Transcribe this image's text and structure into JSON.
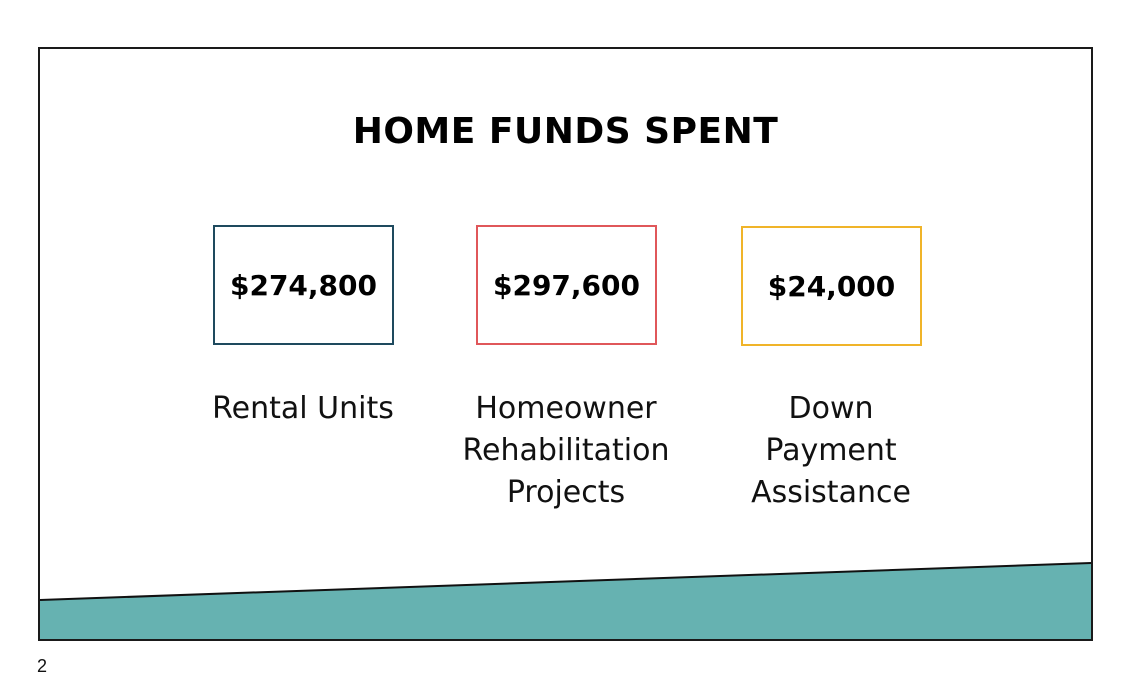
{
  "slide": {
    "title": "HOME FUNDS SPENT",
    "accent_color": "#66b2b1",
    "items": [
      {
        "amount": "$274,800",
        "label_lines": [
          "Rental Units"
        ],
        "border_color": "#1e4a5e"
      },
      {
        "amount": "$297,600",
        "label_lines": [
          "Homeowner",
          "Rehabilitation",
          "Projects"
        ],
        "border_color": "#e0575a"
      },
      {
        "amount": "$24,000",
        "label_lines": [
          "Down",
          "Payment",
          "Assistance"
        ],
        "border_color": "#f0b429"
      }
    ]
  },
  "page_number": "2"
}
